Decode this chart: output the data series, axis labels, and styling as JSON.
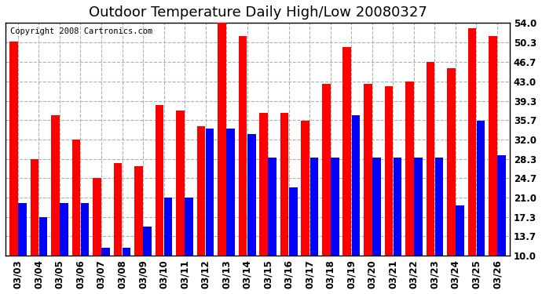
{
  "title": "Outdoor Temperature Daily High/Low 20080327",
  "copyright": "Copyright 2008 Cartronics.com",
  "dates": [
    "03/03",
    "03/04",
    "03/05",
    "03/06",
    "03/07",
    "03/08",
    "03/09",
    "03/10",
    "03/11",
    "03/12",
    "03/13",
    "03/14",
    "03/15",
    "03/16",
    "03/17",
    "03/18",
    "03/19",
    "03/20",
    "03/21",
    "03/22",
    "03/23",
    "03/24",
    "03/25",
    "03/26"
  ],
  "highs": [
    50.5,
    28.3,
    36.5,
    32.0,
    24.7,
    27.5,
    27.0,
    38.5,
    37.5,
    34.5,
    54.0,
    51.5,
    37.0,
    37.0,
    35.5,
    42.5,
    49.5,
    42.5,
    42.0,
    43.0,
    46.7,
    45.5,
    53.0,
    51.5
  ],
  "lows": [
    20.0,
    17.3,
    20.0,
    20.0,
    11.5,
    11.5,
    15.5,
    21.0,
    21.0,
    34.0,
    34.0,
    33.0,
    28.5,
    23.0,
    28.5,
    28.5,
    36.5,
    28.5,
    28.5,
    28.5,
    28.5,
    19.5,
    35.5,
    29.0
  ],
  "high_color": "#ff0000",
  "low_color": "#0000ff",
  "bg_color": "#ffffff",
  "plot_bg_color": "#ffffff",
  "grid_color": "#b0b0b0",
  "yticks": [
    10.0,
    13.7,
    17.3,
    21.0,
    24.7,
    28.3,
    32.0,
    35.7,
    39.3,
    43.0,
    46.7,
    50.3,
    54.0
  ],
  "ymin": 10.0,
  "ymax": 54.0,
  "title_fontsize": 13,
  "copyright_fontsize": 7.5,
  "tick_fontsize": 8.5
}
